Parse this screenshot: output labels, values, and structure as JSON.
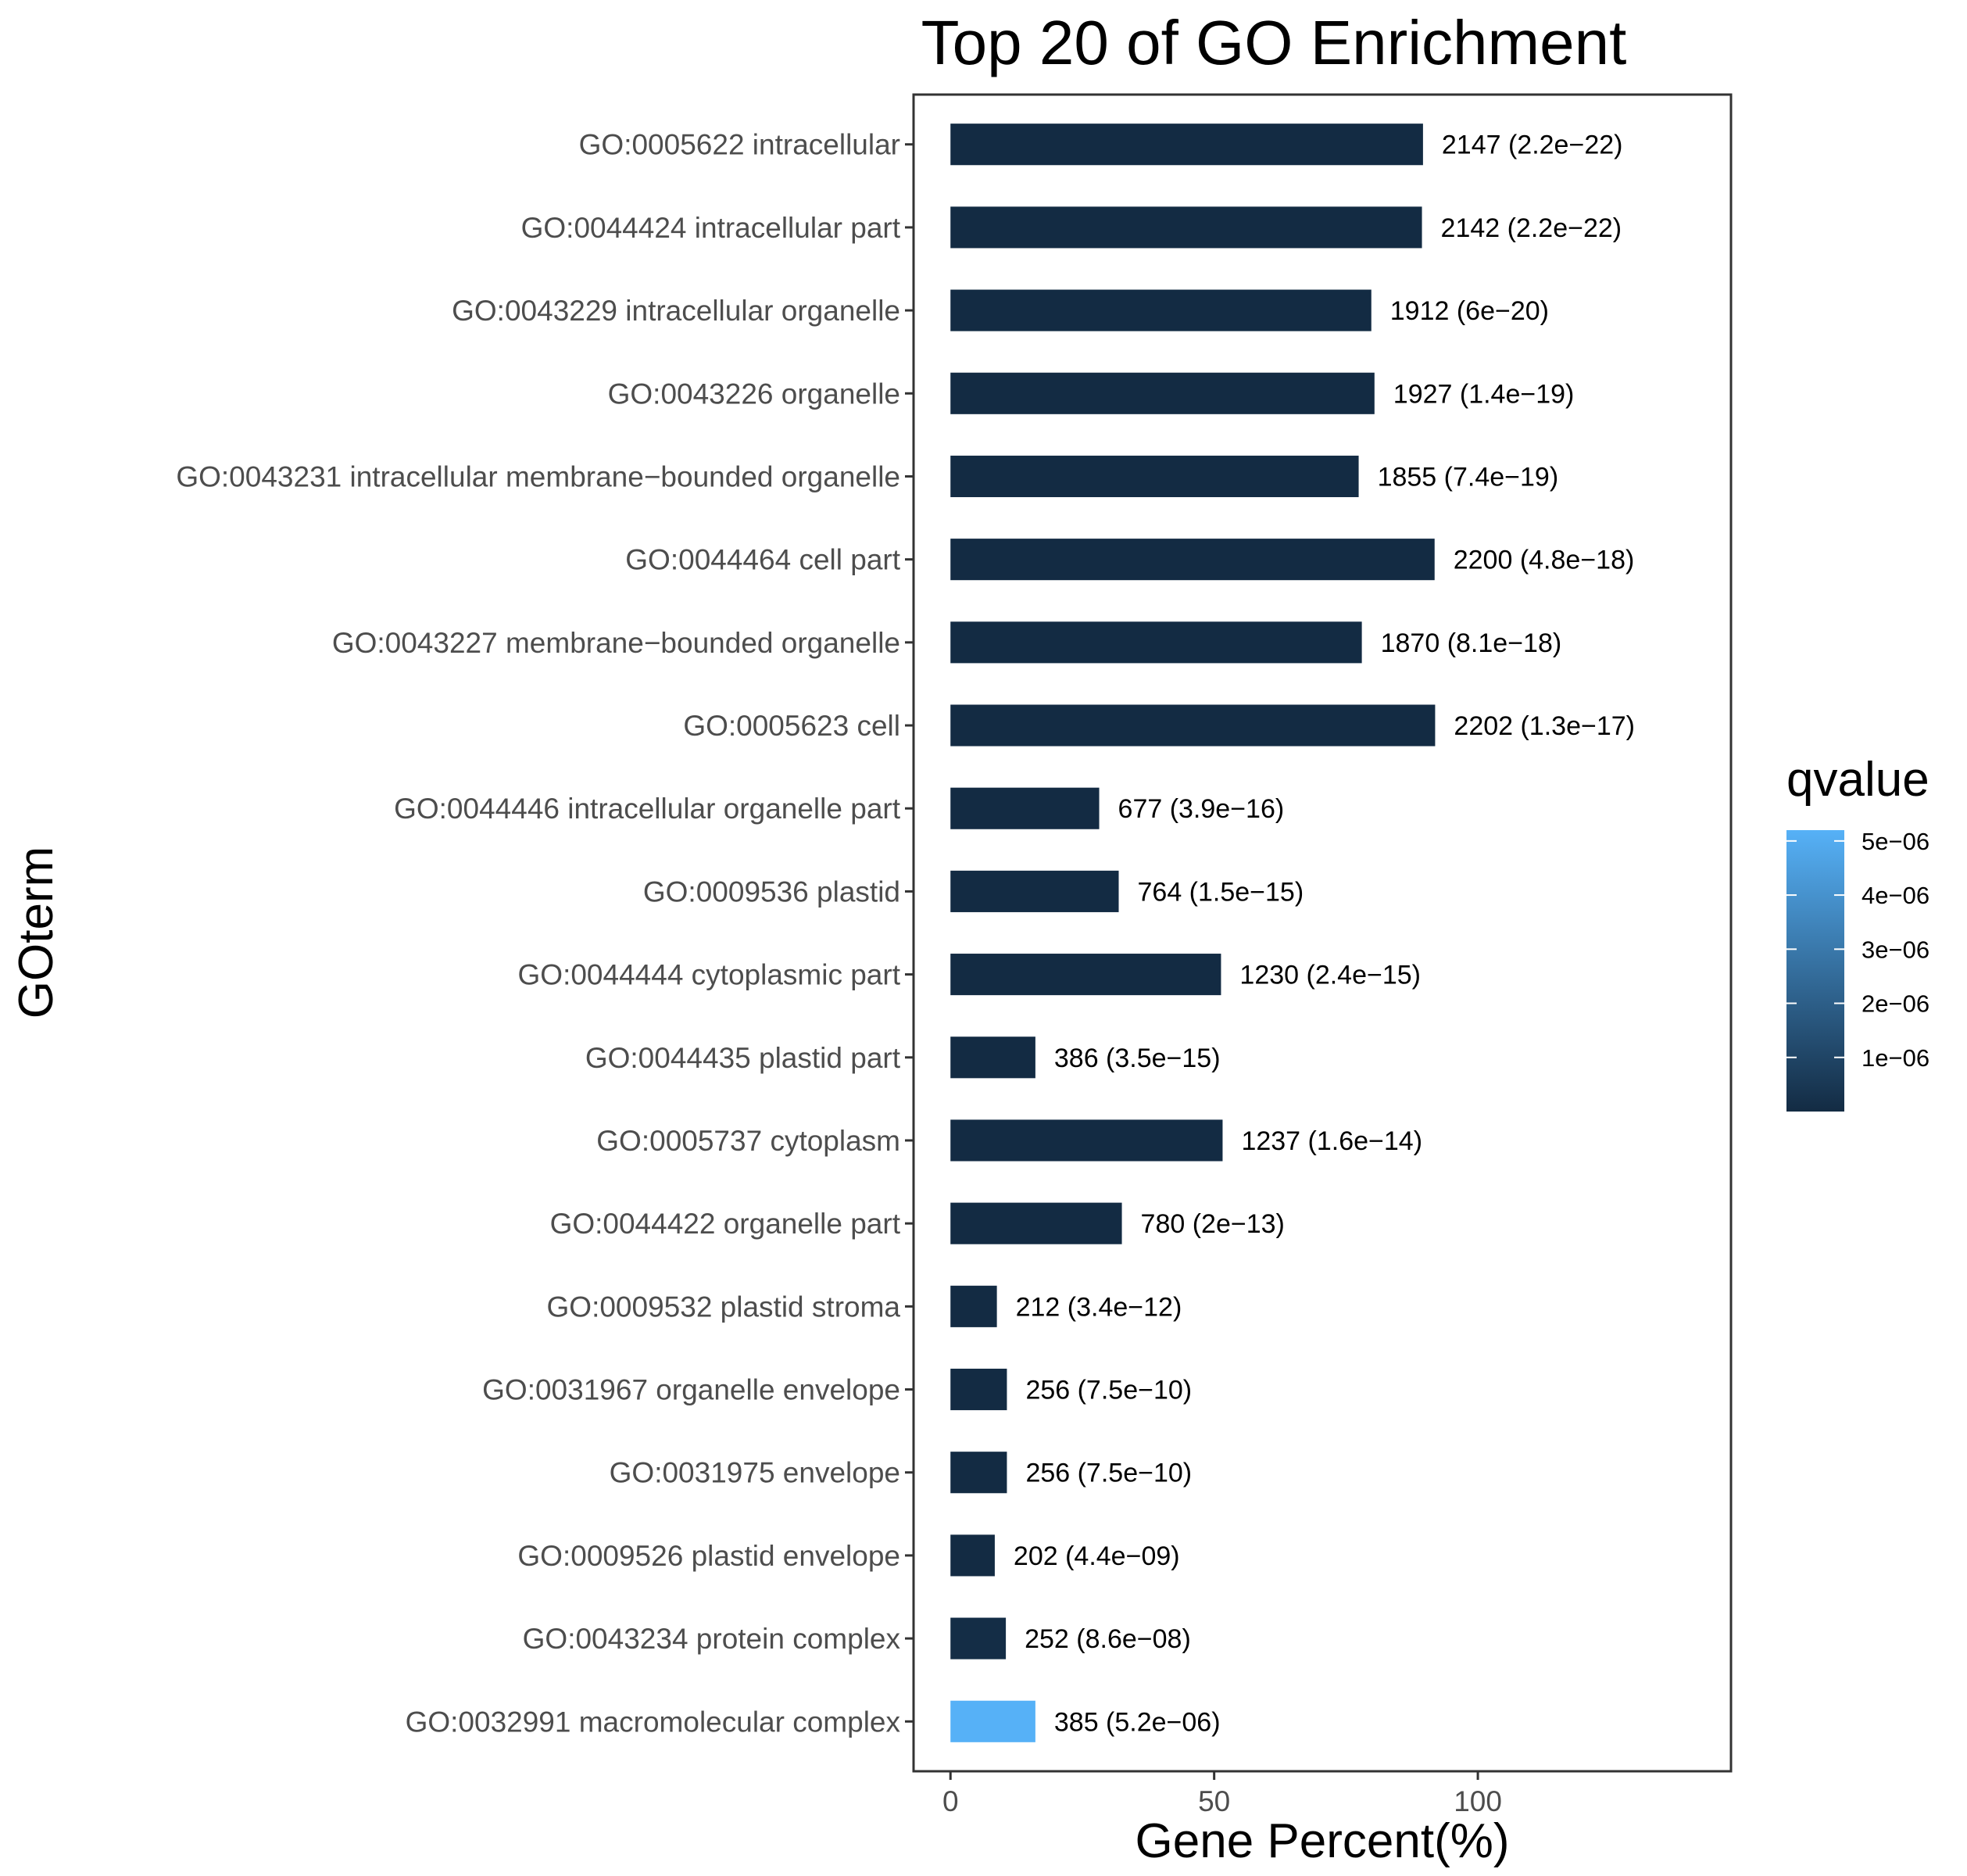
{
  "chart_data": {
    "type": "bar",
    "orientation": "horizontal",
    "title": "Top 20 of GO Enrichment",
    "xlabel": "Gene Percent(%)",
    "ylabel": "GOterm",
    "xlim": [
      -7,
      148
    ],
    "xticks": [
      0,
      50,
      100
    ],
    "xtick_labels": [
      "0",
      "50",
      "100"
    ],
    "grid": false,
    "categories": [
      "GO:0005622 intracellular",
      "GO:0044424 intracellular part",
      "GO:0043229 intracellular organelle",
      "GO:0043226 organelle",
      "GO:0043231 intracellular membrane−bounded organelle",
      "GO:0044464 cell part",
      "GO:0043227 membrane−bounded organelle",
      "GO:0005623 cell",
      "GO:0044446 intracellular organelle part",
      "GO:0009536 plastid",
      "GO:0044444 cytoplasmic part",
      "GO:0044435 plastid part",
      "GO:0005737 cytoplasm",
      "GO:0044422 organelle part",
      "GO:0009532 plastid stroma",
      "GO:0031967 organelle envelope",
      "GO:0031975 envelope",
      "GO:0009526 plastid envelope",
      "GO:0043234 protein complex",
      "GO:0032991 macromolecular complex"
    ],
    "values": [
      89.6,
      89.4,
      79.8,
      80.4,
      77.4,
      91.8,
      78.0,
      91.9,
      28.2,
      31.9,
      51.3,
      16.1,
      51.6,
      32.5,
      8.8,
      10.7,
      10.7,
      8.4,
      10.5,
      16.1
    ],
    "counts": [
      2147,
      2142,
      1912,
      1927,
      1855,
      2200,
      1870,
      2202,
      677,
      764,
      1230,
      386,
      1237,
      780,
      212,
      256,
      256,
      202,
      252,
      385
    ],
    "qvalues": [
      2.2e-22,
      2.2e-22,
      6e-20,
      1.4e-19,
      7.4e-19,
      4.8e-18,
      8.1e-18,
      1.3e-17,
      3.9e-16,
      1.5e-15,
      2.4e-15,
      3.5e-15,
      1.6e-14,
      2e-13,
      3.4e-12,
      7.5e-10,
      7.5e-10,
      4.4e-09,
      8.6e-08,
      5.2e-06
    ],
    "data_labels": [
      "2147 (2.2e−22)",
      "2142 (2.2e−22)",
      "1912 (6e−20)",
      "1927 (1.4e−19)",
      "1855 (7.4e−19)",
      "2200 (4.8e−18)",
      "1870 (8.1e−18)",
      "2202 (1.3e−17)",
      "677 (3.9e−16)",
      "764 (1.5e−15)",
      "1230 (2.4e−15)",
      "386 (3.5e−15)",
      "1237 (1.6e−14)",
      "780 (2e−13)",
      "212 (3.4e−12)",
      "256 (7.5e−10)",
      "256 (7.5e−10)",
      "202 (4.4e−09)",
      "252 (8.6e−08)",
      "385 (5.2e−06)"
    ],
    "legend": {
      "title": "qvalue",
      "placement": "right",
      "range": [
        0,
        5.2e-06
      ],
      "ticks": [
        1e-06,
        2e-06,
        3e-06,
        4e-06,
        5e-06
      ],
      "tick_labels": [
        "1e−06",
        "2e−06",
        "3e−06",
        "4e−06",
        "5e−06"
      ],
      "low_color": "#132b43",
      "high_color": "#56b1f7"
    }
  }
}
